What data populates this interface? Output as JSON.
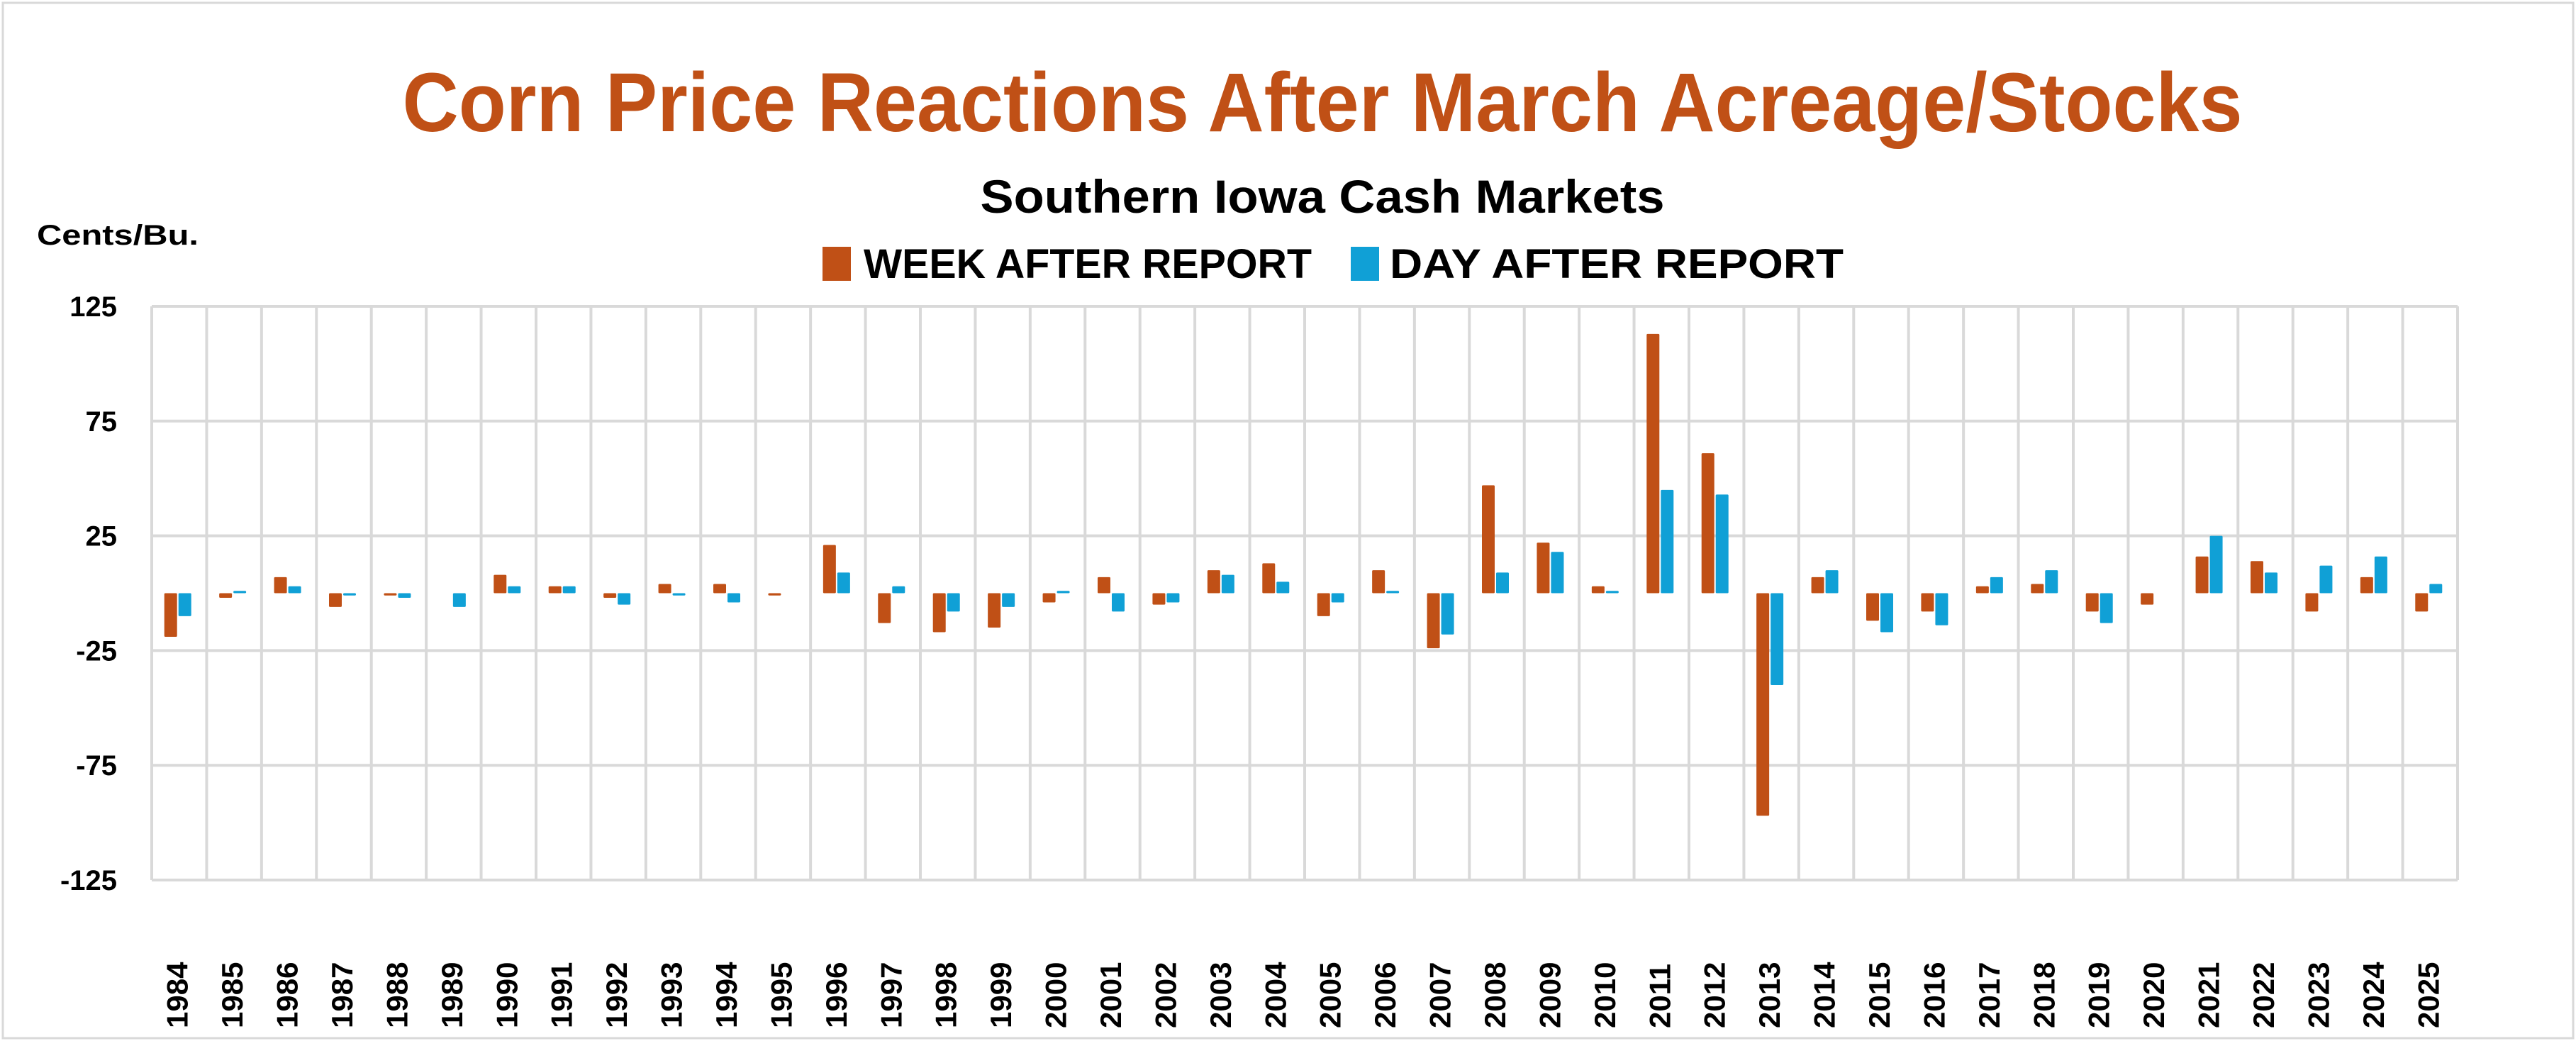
{
  "chart_data": {
    "type": "bar",
    "title": "Corn Price Reactions After March Acreage/Stocks",
    "subtitle": "Southern Iowa Cash Markets",
    "ylabel": "Cents/Bu.",
    "xlabel": "",
    "ylim": [
      -125,
      125
    ],
    "yticks": [
      "125",
      "75",
      "25",
      "-25",
      "-75",
      "-125"
    ],
    "grid": true,
    "legend_position": "top-center",
    "categories": [
      "1984",
      "1985",
      "1986",
      "1987",
      "1988",
      "1989",
      "1990",
      "1991",
      "1992",
      "1993",
      "1994",
      "1995",
      "1996",
      "1997",
      "1998",
      "1999",
      "2000",
      "2001",
      "2002",
      "2003",
      "2004",
      "2005",
      "2006",
      "2007",
      "2008",
      "2009",
      "2010",
      "2011",
      "2012",
      "2013",
      "2014",
      "2015",
      "2016",
      "2017",
      "2018",
      "2019",
      "2020",
      "2021",
      "2022",
      "2023",
      "2024",
      "2025"
    ],
    "series": [
      {
        "name": "WEEK AFTER REPORT",
        "color": "#C05016",
        "values": [
          -19,
          -2,
          7,
          -6,
          -1,
          0,
          8,
          3,
          -2,
          4,
          4,
          -1,
          21,
          -13,
          -17,
          -15,
          -4,
          7,
          -5,
          10,
          13,
          -10,
          10,
          -24,
          47,
          22,
          3,
          113,
          61,
          -97,
          7,
          -12,
          -8,
          3,
          4,
          -8,
          -5,
          16,
          14,
          -8,
          7,
          -8
        ]
      },
      {
        "name": "DAY AFTER REPORT",
        "color": "#10A0D6",
        "values": [
          -10,
          1,
          3,
          -1,
          -2,
          -6,
          3,
          3,
          -5,
          -1,
          -4,
          0,
          9,
          3,
          -8,
          -6,
          1,
          -8,
          -4,
          8,
          5,
          -4,
          1,
          -18,
          9,
          18,
          1,
          45,
          43,
          -40,
          10,
          -17,
          -14,
          7,
          10,
          -13,
          0,
          25,
          9,
          12,
          16,
          4
        ]
      }
    ]
  }
}
